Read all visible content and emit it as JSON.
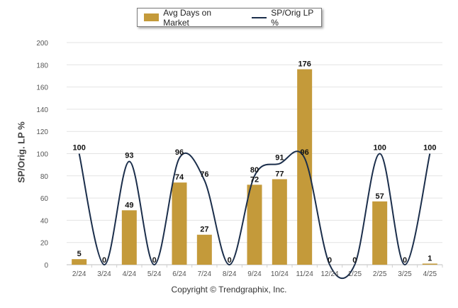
{
  "legend": {
    "bar_label": "Avg Days on Market",
    "line_label": "SP/Orig LP %"
  },
  "copyright": "Copyright © Trendgraphix, Inc.",
  "colors": {
    "bar": "#C49A3A",
    "line": "#1B2E4B",
    "grid": "#e3e3e3"
  },
  "chart_data": {
    "type": "bar+line",
    "categories": [
      "2/24",
      "3/24",
      "4/24",
      "5/24",
      "6/24",
      "7/24",
      "8/24",
      "9/24",
      "10/24",
      "11/24",
      "12/24",
      "1/25",
      "2/25",
      "3/25",
      "4/25"
    ],
    "series": [
      {
        "name": "Avg Days on Market",
        "type": "bar",
        "values": [
          5,
          0,
          49,
          0,
          74,
          27,
          0,
          72,
          77,
          176,
          0,
          0,
          57,
          0,
          1
        ]
      },
      {
        "name": "SP/Orig LP %",
        "type": "line",
        "values": [
          100,
          0,
          93,
          0,
          96,
          76,
          0,
          80,
          91,
          96,
          0,
          0,
          100,
          0,
          100
        ]
      }
    ],
    "bar_labels": [
      "5",
      "",
      "49",
      "",
      "74",
      "27",
      "",
      "72",
      "77",
      "176",
      "",
      "",
      "57",
      "",
      "1"
    ],
    "line_labels": [
      "100",
      "0",
      "93",
      "0",
      "96",
      "76",
      "0",
      "80",
      "91",
      "96",
      "0",
      "0",
      "100",
      "0",
      "100"
    ],
    "ylabel": "SP/Orig. LP %",
    "ylim": [
      0,
      200
    ],
    "yticks": [
      0,
      20,
      40,
      60,
      80,
      100,
      120,
      140,
      160,
      180,
      200
    ],
    "grid": true,
    "legend_position": "top-center"
  }
}
